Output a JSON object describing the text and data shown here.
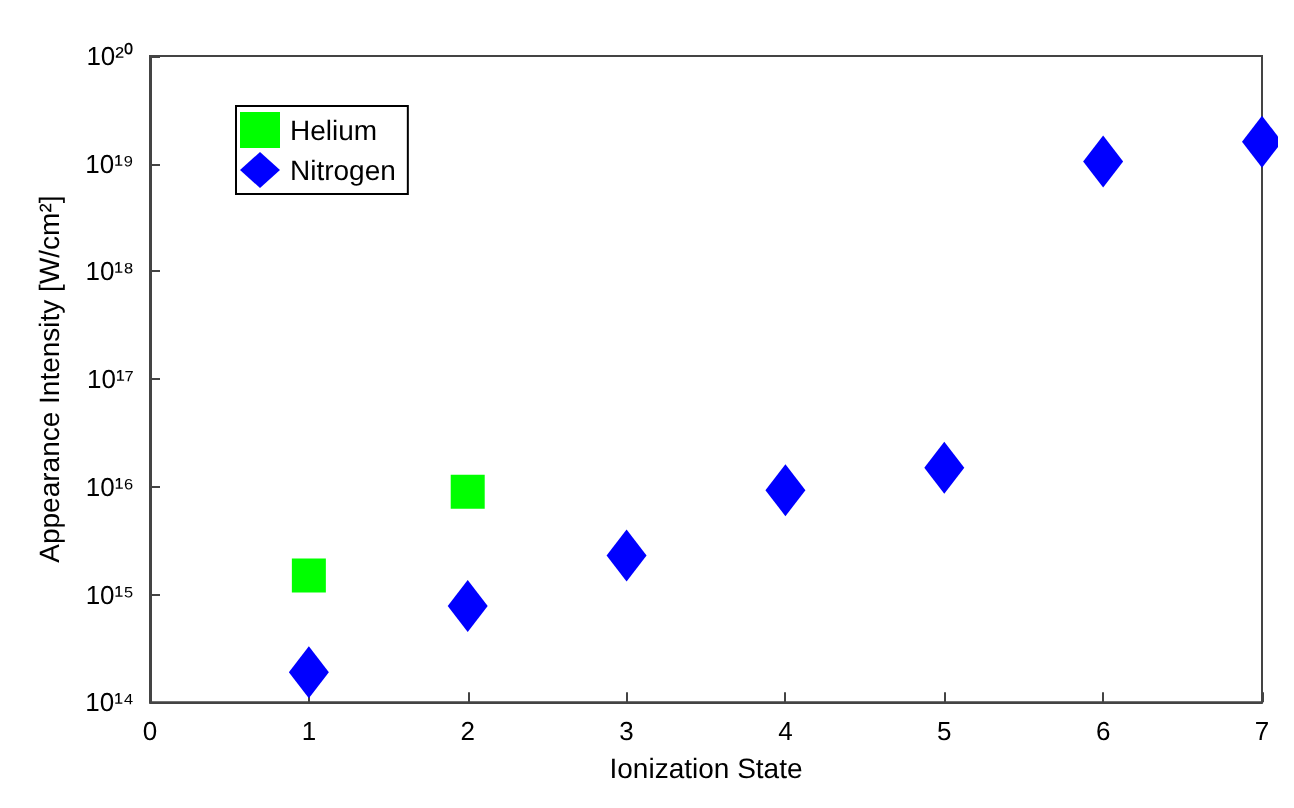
{
  "chart_data": {
    "type": "scatter",
    "xlabel": "Ionization State",
    "ylabel": "Appearance Intensity [W/cm²]",
    "log": "y",
    "grid": false,
    "legend": "top left",
    "xlim": [
      0,
      7
    ],
    "xticks": [
      0,
      1,
      2,
      3,
      4,
      5,
      6,
      7
    ],
    "ylim": [
      100000000000000.0,
      1e+20
    ],
    "yticks": [
      {
        "value": 100000000000000.0,
        "label": "10¹⁴"
      },
      {
        "value": 1000000000000000.0,
        "label": "10¹⁵"
      },
      {
        "value": 1e+16,
        "label": "10¹⁶"
      },
      {
        "value": 1e+17,
        "label": "10¹⁷"
      },
      {
        "value": 1e+18,
        "label": "10¹⁸"
      },
      {
        "value": 1e+19,
        "label": "10¹⁹"
      },
      {
        "value": 1e+20,
        "label": "10²⁰"
      }
    ],
    "series": [
      {
        "name": "Helium",
        "color": "#00ff00",
        "marker": "square",
        "x": [
          1,
          2
        ],
        "values": [
          1500000000000000.0,
          9000000000000000.0
        ]
      },
      {
        "name": "Nitrogen",
        "color": "#0000ff",
        "marker": "diamond",
        "x": [
          1,
          2,
          3,
          4,
          5,
          6,
          7
        ],
        "values": [
          190000000000000.0,
          780000000000000.0,
          2300000000000000.0,
          9300000000000000.0,
          1.5e+16,
          1.05e+19,
          1.6e+19
        ]
      }
    ]
  }
}
